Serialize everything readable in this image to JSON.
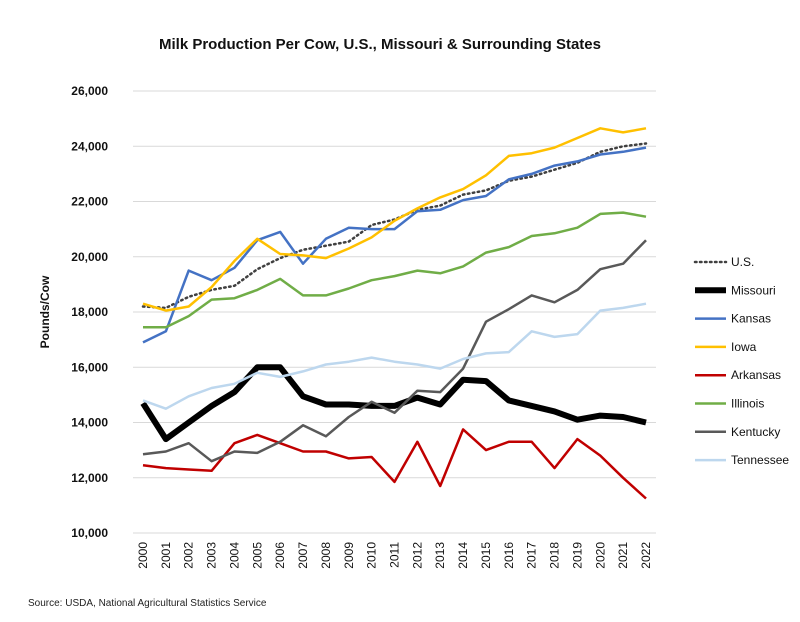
{
  "chart_data": {
    "type": "line",
    "title": "Milk Production Per Cow, U.S., Missouri & Surrounding States",
    "ylabel": "Pounds/Cow",
    "xlabel": "",
    "ylim": [
      10000,
      26000
    ],
    "yticks": [
      "10,000",
      "12,000",
      "14,000",
      "16,000",
      "18,000",
      "20,000",
      "22,000",
      "24,000",
      "26,000"
    ],
    "grid": true,
    "legend": "right",
    "categories": [
      "2000",
      "2001",
      "2002",
      "2003",
      "2004",
      "2005",
      "2006",
      "2007",
      "2008",
      "2009",
      "2010",
      "2011",
      "2012",
      "2013",
      "2014",
      "2015",
      "2016",
      "2017",
      "2018",
      "2019",
      "2020",
      "2021",
      "2022"
    ],
    "series": [
      {
        "name": "U.S.",
        "color": "#404040",
        "style": "dotted",
        "values": [
          18200,
          18150,
          18550,
          18800,
          18950,
          19550,
          19950,
          20250,
          20400,
          20550,
          21150,
          21350,
          21700,
          21850,
          22250,
          22400,
          22750,
          22900,
          23150,
          23400,
          23800,
          24000,
          24100
        ]
      },
      {
        "name": "Missouri",
        "color": "#000000",
        "style": "thick",
        "values": [
          14700,
          13400,
          14000,
          14600,
          15100,
          16000,
          16000,
          14950,
          14650,
          14650,
          14600,
          14600,
          14900,
          14650,
          15550,
          15500,
          14800,
          14600,
          14400,
          14100,
          14250,
          14200,
          14000
        ]
      },
      {
        "name": "Kansas",
        "color": "#4472C4",
        "style": "solid",
        "values": [
          16900,
          17300,
          19500,
          19150,
          19600,
          20600,
          20900,
          19750,
          20650,
          21050,
          21000,
          21000,
          21650,
          21700,
          22050,
          22200,
          22800,
          23000,
          23300,
          23450,
          23700,
          23800,
          23950
        ]
      },
      {
        "name": "Iowa",
        "color": "#FFC000",
        "style": "solid",
        "values": [
          18300,
          18050,
          18200,
          18900,
          19850,
          20650,
          20100,
          20050,
          19950,
          20300,
          20700,
          21300,
          21750,
          22150,
          22450,
          22950,
          23650,
          23750,
          23950,
          24300,
          24650,
          24500,
          24650
        ]
      },
      {
        "name": "Arkansas",
        "color": "#C00000",
        "style": "solid",
        "values": [
          12450,
          12350,
          12300,
          12250,
          13250,
          13550,
          13250,
          12950,
          12950,
          12700,
          12750,
          11850,
          13300,
          11700,
          13750,
          13000,
          13300,
          13300,
          12350,
          13400,
          12800,
          12000,
          11250
        ]
      },
      {
        "name": "Illinois",
        "color": "#70AD47",
        "style": "solid",
        "values": [
          17450,
          17450,
          17850,
          18450,
          18500,
          18800,
          19200,
          18600,
          18600,
          18850,
          19150,
          19300,
          19500,
          19400,
          19650,
          20150,
          20350,
          20750,
          20850,
          21050,
          21550,
          21600,
          21450
        ]
      },
      {
        "name": "Kentucky",
        "color": "#595959",
        "style": "solid",
        "values": [
          12850,
          12950,
          13250,
          12600,
          12950,
          12900,
          13300,
          13900,
          13500,
          14200,
          14750,
          14350,
          15150,
          15100,
          15950,
          17650,
          18100,
          18600,
          18350,
          18800,
          19550,
          19750,
          20600
        ]
      },
      {
        "name": "Tennessee",
        "color": "#BDD7EE",
        "style": "solid",
        "values": [
          14800,
          14500,
          14950,
          15250,
          15400,
          15800,
          15650,
          15850,
          16100,
          16200,
          16350,
          16200,
          16100,
          15950,
          16300,
          16500,
          16550,
          17300,
          17100,
          17200,
          18050,
          18150,
          18300
        ]
      }
    ]
  },
  "source": "Source: USDA, National Agricultural Statistics Service"
}
